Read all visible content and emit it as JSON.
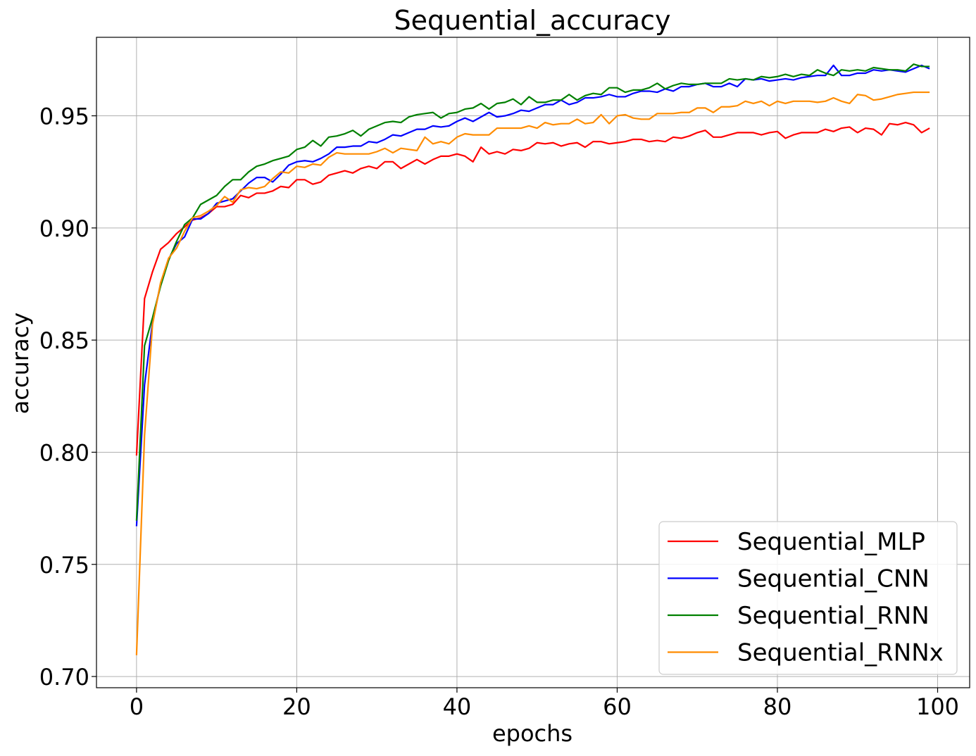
{
  "chart_data": {
    "type": "line",
    "title": "Sequential_accuracy",
    "xlabel": "epochs",
    "ylabel": "accuracy",
    "xlim": [
      -5,
      104
    ],
    "ylim": [
      0.695,
      0.985
    ],
    "xticks": [
      0,
      20,
      40,
      60,
      80,
      100
    ],
    "yticks": [
      0.7,
      0.75,
      0.8,
      0.85,
      0.9,
      0.95
    ],
    "xtick_labels": [
      "0",
      "20",
      "40",
      "60",
      "80",
      "100"
    ],
    "ytick_labels": [
      "0.70",
      "0.75",
      "0.80",
      "0.85",
      "0.90",
      "0.95"
    ],
    "grid": true,
    "legend_position": "bottom-right",
    "series": [
      {
        "name": "Sequential_MLP",
        "color": "#ff0000",
        "values": [
          0.7985,
          0.8685,
          0.8805,
          0.8905,
          0.8935,
          0.8975,
          0.9005,
          0.9035,
          0.9045,
          0.9065,
          0.9095,
          0.9095,
          0.9105,
          0.9145,
          0.9135,
          0.9155,
          0.9155,
          0.9165,
          0.9185,
          0.918,
          0.9215,
          0.9215,
          0.9195,
          0.9205,
          0.9235,
          0.9245,
          0.9255,
          0.9245,
          0.9265,
          0.9275,
          0.9265,
          0.9295,
          0.9295,
          0.9265,
          0.9285,
          0.9305,
          0.9285,
          0.9305,
          0.932,
          0.932,
          0.933,
          0.932,
          0.9295,
          0.936,
          0.933,
          0.934,
          0.933,
          0.935,
          0.9345,
          0.9355,
          0.938,
          0.9375,
          0.938,
          0.9365,
          0.9375,
          0.938,
          0.936,
          0.9385,
          0.9385,
          0.9375,
          0.938,
          0.9385,
          0.9395,
          0.9395,
          0.9385,
          0.939,
          0.9385,
          0.9405,
          0.94,
          0.941,
          0.9425,
          0.9435,
          0.9405,
          0.9405,
          0.9415,
          0.9425,
          0.9425,
          0.9425,
          0.9415,
          0.9425,
          0.943,
          0.94,
          0.9415,
          0.9425,
          0.9425,
          0.9425,
          0.944,
          0.943,
          0.9445,
          0.945,
          0.9425,
          0.9445,
          0.944,
          0.9415,
          0.9465,
          0.946,
          0.947,
          0.946,
          0.9425,
          0.9445
        ]
      },
      {
        "name": "Sequential_CNN",
        "color": "#0000ff",
        "values": [
          0.767,
          0.83,
          0.858,
          0.875,
          0.886,
          0.893,
          0.896,
          0.904,
          0.904,
          0.9065,
          0.911,
          0.912,
          0.913,
          0.9165,
          0.92,
          0.9225,
          0.9225,
          0.9205,
          0.924,
          0.928,
          0.9295,
          0.93,
          0.9295,
          0.931,
          0.933,
          0.936,
          0.936,
          0.9365,
          0.9365,
          0.9385,
          0.938,
          0.9395,
          0.9415,
          0.941,
          0.9425,
          0.944,
          0.944,
          0.9455,
          0.945,
          0.9455,
          0.9475,
          0.949,
          0.9475,
          0.9495,
          0.9515,
          0.9495,
          0.95,
          0.951,
          0.9525,
          0.952,
          0.9535,
          0.955,
          0.955,
          0.957,
          0.955,
          0.956,
          0.958,
          0.958,
          0.9585,
          0.9595,
          0.9585,
          0.9585,
          0.96,
          0.961,
          0.961,
          0.9605,
          0.962,
          0.961,
          0.963,
          0.963,
          0.964,
          0.9645,
          0.963,
          0.963,
          0.9645,
          0.963,
          0.9665,
          0.966,
          0.9665,
          0.9655,
          0.966,
          0.9665,
          0.966,
          0.967,
          0.9675,
          0.968,
          0.968,
          0.9725,
          0.968,
          0.968,
          0.969,
          0.969,
          0.9705,
          0.97,
          0.9705,
          0.97,
          0.9695,
          0.971,
          0.9725,
          0.971
        ]
      },
      {
        "name": "Sequential_RNN",
        "color": "#008000",
        "values": [
          0.7695,
          0.8475,
          0.86,
          0.874,
          0.8855,
          0.894,
          0.9015,
          0.9045,
          0.9105,
          0.9125,
          0.9145,
          0.9185,
          0.9215,
          0.9215,
          0.925,
          0.9275,
          0.9285,
          0.93,
          0.931,
          0.932,
          0.935,
          0.936,
          0.939,
          0.9365,
          0.9405,
          0.941,
          0.942,
          0.9435,
          0.941,
          0.944,
          0.9455,
          0.947,
          0.9475,
          0.947,
          0.9495,
          0.9505,
          0.951,
          0.9515,
          0.949,
          0.951,
          0.9515,
          0.953,
          0.9535,
          0.9555,
          0.953,
          0.9555,
          0.956,
          0.9575,
          0.955,
          0.9585,
          0.956,
          0.956,
          0.957,
          0.957,
          0.9595,
          0.957,
          0.959,
          0.96,
          0.9595,
          0.9625,
          0.9625,
          0.9605,
          0.9615,
          0.9615,
          0.9625,
          0.9645,
          0.962,
          0.9635,
          0.9645,
          0.964,
          0.964,
          0.9645,
          0.9645,
          0.9645,
          0.9665,
          0.966,
          0.9665,
          0.966,
          0.9675,
          0.967,
          0.9675,
          0.9685,
          0.9675,
          0.9685,
          0.968,
          0.9705,
          0.969,
          0.968,
          0.9705,
          0.97,
          0.9705,
          0.97,
          0.9715,
          0.971,
          0.9705,
          0.9705,
          0.97,
          0.973,
          0.972,
          0.972
        ]
      },
      {
        "name": "Sequential_RNNx",
        "color": "#ff8c00",
        "values": [
          0.7095,
          0.8075,
          0.857,
          0.8755,
          0.8865,
          0.891,
          0.8985,
          0.9045,
          0.9055,
          0.9075,
          0.91,
          0.914,
          0.9115,
          0.917,
          0.918,
          0.9175,
          0.9185,
          0.922,
          0.925,
          0.9245,
          0.9275,
          0.927,
          0.9285,
          0.928,
          0.9315,
          0.9335,
          0.933,
          0.933,
          0.933,
          0.933,
          0.934,
          0.9355,
          0.9335,
          0.9355,
          0.935,
          0.9345,
          0.9405,
          0.9375,
          0.9385,
          0.9375,
          0.9405,
          0.942,
          0.9415,
          0.9415,
          0.9415,
          0.9445,
          0.9445,
          0.9445,
          0.9445,
          0.9455,
          0.9445,
          0.947,
          0.946,
          0.9465,
          0.9465,
          0.9485,
          0.9465,
          0.947,
          0.9505,
          0.9465,
          0.95,
          0.9505,
          0.949,
          0.9485,
          0.9485,
          0.951,
          0.951,
          0.951,
          0.9515,
          0.9515,
          0.9535,
          0.9535,
          0.9515,
          0.954,
          0.954,
          0.9545,
          0.9565,
          0.9555,
          0.9565,
          0.9545,
          0.9565,
          0.9555,
          0.9565,
          0.9565,
          0.9565,
          0.956,
          0.9565,
          0.958,
          0.9565,
          0.9555,
          0.9595,
          0.959,
          0.957,
          0.9575,
          0.9585,
          0.9595,
          0.96,
          0.9605,
          0.9605,
          0.9605
        ]
      }
    ]
  }
}
